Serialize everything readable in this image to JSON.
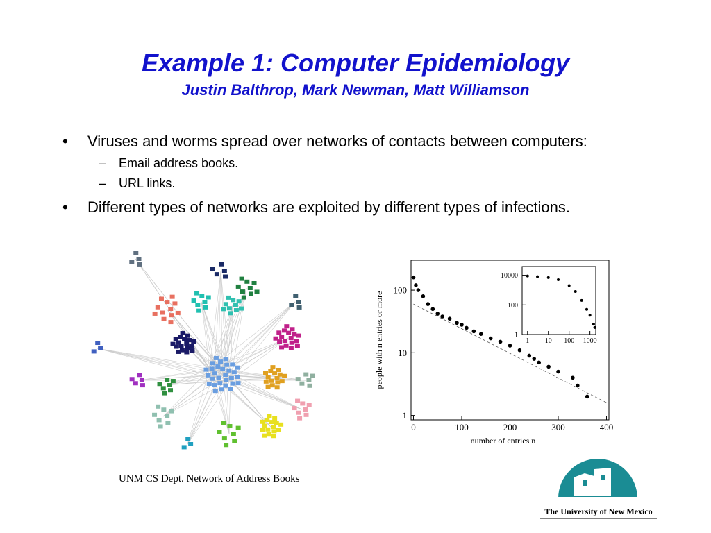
{
  "title": "Example 1: Computer Epidemiology",
  "subtitle": "Justin Balthrop, Mark Newman, Matt Williamson",
  "bullets": [
    {
      "text": "Viruses and worms spread over networks of contacts between computers:",
      "sub": [
        "Email address books.",
        "URL links."
      ]
    },
    {
      "text": "Different types of networks are exploited by different types of infections."
    }
  ],
  "caption": "UNM CS Dept. Network of Address Books",
  "logo_text": "The University of New Mexico",
  "chart_data": [
    {
      "type": "scatter",
      "xlabel": "number of entries  n",
      "ylabel": "people with n entries or more",
      "x": [
        0,
        5,
        10,
        20,
        30,
        40,
        50,
        60,
        75,
        90,
        100,
        110,
        125,
        140,
        160,
        180,
        200,
        220,
        240,
        250,
        260,
        280,
        300,
        330,
        340,
        360
      ],
      "values": [
        160,
        120,
        100,
        80,
        60,
        50,
        42,
        38,
        35,
        30,
        28,
        25,
        22,
        20,
        17,
        15,
        13,
        11,
        9,
        8,
        7,
        6,
        5,
        4,
        3,
        2
      ],
      "color": "#000000",
      "fit": {
        "x": [
          0,
          400
        ],
        "values": [
          60,
          1.6
        ]
      },
      "xlim": [
        -5,
        405
      ],
      "ylim": [
        0.85,
        300
      ],
      "ylog": true,
      "xticks": [
        0,
        100,
        200,
        300,
        400
      ],
      "yticks": [
        1,
        10,
        100
      ]
    },
    {
      "type": "scatter",
      "x": [
        1,
        3,
        10,
        30,
        100,
        200,
        400,
        700,
        1000,
        1500,
        1700
      ],
      "values": [
        9000,
        8000,
        7000,
        5000,
        2000,
        800,
        200,
        50,
        20,
        5,
        3
      ],
      "color": "#000000",
      "xlim": [
        0.55,
        1900
      ],
      "ylim": [
        1,
        39000
      ],
      "xlog": true,
      "ylog": true,
      "xticks": [
        1,
        10,
        100,
        1000
      ],
      "yticks": [
        1,
        100,
        10000
      ]
    }
  ]
}
